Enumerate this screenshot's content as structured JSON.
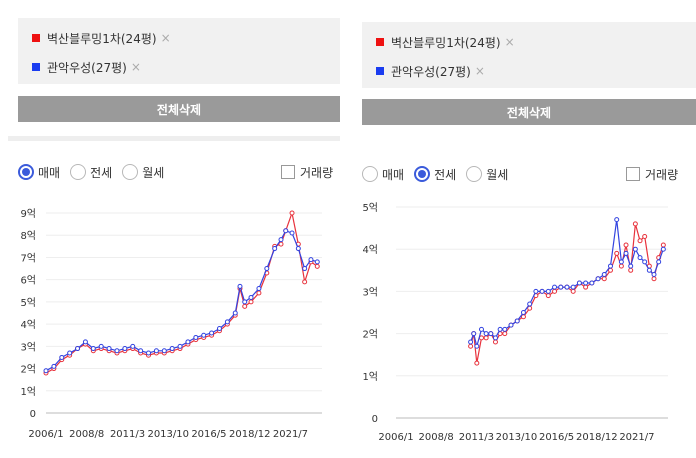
{
  "colors": {
    "series_a": "#e8323c",
    "series_b": "#3344e0",
    "accent": "#3b5bdb",
    "button_bg": "#9a9a9a"
  },
  "panels": [
    {
      "legend": [
        {
          "label": "벽산블루밍1차(24평)",
          "color": "#ee1111"
        },
        {
          "label": "관악우성(27평)",
          "color": "#1a3cf0"
        }
      ],
      "remove_icon": "×",
      "delete_all_label": "전체삭제",
      "radio_options": [
        {
          "label": "매매",
          "selected": true
        },
        {
          "label": "전세",
          "selected": false
        },
        {
          "label": "월세",
          "selected": false
        }
      ],
      "volume_label": "거래량",
      "volume_checked": false
    },
    {
      "legend": [
        {
          "label": "벽산블루밍1차(24평)",
          "color": "#ee1111"
        },
        {
          "label": "관악우성(27평)",
          "color": "#1a3cf0"
        }
      ],
      "remove_icon": "×",
      "delete_all_label": "전체삭제",
      "radio_options": [
        {
          "label": "매매",
          "selected": false
        },
        {
          "label": "전세",
          "selected": true
        },
        {
          "label": "월세",
          "selected": false
        }
      ],
      "volume_label": "거래량",
      "volume_checked": false
    }
  ],
  "chart_data": [
    {
      "type": "line",
      "title": "",
      "x_tick_labels": [
        "2006/1",
        "2008/8",
        "2011/3",
        "2013/10",
        "2016/5",
        "2018/12",
        "2021/7"
      ],
      "x_tick_values": [
        2006.0,
        2008.58,
        2011.17,
        2013.75,
        2016.33,
        2018.92,
        2021.5
      ],
      "x_range": [
        2006.0,
        2023.5
      ],
      "y_tick_labels": [
        "0",
        "1억",
        "2억",
        "3억",
        "4억",
        "5억",
        "6억",
        "7억",
        "8억",
        "9억"
      ],
      "y_tick_values": [
        0,
        1,
        2,
        3,
        4,
        5,
        6,
        7,
        8,
        9
      ],
      "y_range": [
        0,
        9
      ],
      "grid": "horizontal",
      "series": [
        {
          "name": "벽산블루밍1차(24평)",
          "color": "#e8323c",
          "x": [
            2006.0,
            2006.5,
            2007.0,
            2007.5,
            2008.0,
            2008.5,
            2009.0,
            2009.5,
            2010.0,
            2010.5,
            2011.0,
            2011.5,
            2012.0,
            2012.5,
            2013.0,
            2013.5,
            2014.0,
            2014.5,
            2015.0,
            2015.5,
            2016.0,
            2016.5,
            2017.0,
            2017.5,
            2018.0,
            2018.3,
            2018.6,
            2019.0,
            2019.5,
            2020.0,
            2020.5,
            2020.9,
            2021.2,
            2021.6,
            2022.0,
            2022.4,
            2022.8,
            2023.2
          ],
          "values": [
            1.8,
            2.0,
            2.4,
            2.6,
            2.9,
            3.1,
            2.8,
            2.9,
            2.8,
            2.7,
            2.8,
            2.9,
            2.7,
            2.6,
            2.7,
            2.7,
            2.8,
            2.9,
            3.1,
            3.3,
            3.4,
            3.5,
            3.7,
            4.0,
            4.4,
            5.6,
            4.8,
            5.0,
            5.4,
            6.3,
            7.5,
            7.6,
            8.2,
            9.0,
            7.6,
            5.9,
            6.8,
            6.6
          ]
        },
        {
          "name": "관악우성(27평)",
          "color": "#3344e0",
          "x": [
            2006.0,
            2006.5,
            2007.0,
            2007.5,
            2008.0,
            2008.5,
            2009.0,
            2009.5,
            2010.0,
            2010.5,
            2011.0,
            2011.5,
            2012.0,
            2012.5,
            2013.0,
            2013.5,
            2014.0,
            2014.5,
            2015.0,
            2015.5,
            2016.0,
            2016.5,
            2017.0,
            2017.5,
            2018.0,
            2018.3,
            2018.6,
            2019.0,
            2019.5,
            2020.0,
            2020.5,
            2020.9,
            2021.2,
            2021.6,
            2022.0,
            2022.4,
            2022.8,
            2023.2
          ],
          "values": [
            1.9,
            2.1,
            2.5,
            2.7,
            2.9,
            3.2,
            2.9,
            3.0,
            2.9,
            2.8,
            2.9,
            3.0,
            2.8,
            2.7,
            2.8,
            2.8,
            2.9,
            3.0,
            3.2,
            3.4,
            3.5,
            3.6,
            3.8,
            4.1,
            4.5,
            5.7,
            5.0,
            5.2,
            5.6,
            6.5,
            7.4,
            7.8,
            8.2,
            8.1,
            7.4,
            6.5,
            6.9,
            6.8
          ]
        }
      ]
    },
    {
      "type": "line",
      "title": "",
      "x_tick_labels": [
        "2006/1",
        "2008/8",
        "2011/3",
        "2013/10",
        "2016/5",
        "2018/12",
        "2021/7"
      ],
      "x_tick_values": [
        2006.0,
        2008.58,
        2011.17,
        2013.75,
        2016.33,
        2018.92,
        2021.5
      ],
      "x_range": [
        2006.0,
        2023.5
      ],
      "y_tick_labels": [
        "0",
        "1억",
        "2억",
        "3억",
        "4억",
        "5억"
      ],
      "y_tick_values": [
        0,
        1,
        2,
        3,
        4,
        5
      ],
      "y_range": [
        0,
        5
      ],
      "grid": "horizontal",
      "series": [
        {
          "name": "벽산블루밍1차(24평)",
          "color": "#e8323c",
          "x": [
            2010.8,
            2011.0,
            2011.2,
            2011.5,
            2011.8,
            2012.1,
            2012.4,
            2012.7,
            2013.0,
            2013.4,
            2013.8,
            2014.2,
            2014.6,
            2015.0,
            2015.4,
            2015.8,
            2016.2,
            2016.6,
            2017.0,
            2017.4,
            2017.8,
            2018.2,
            2018.6,
            2019.0,
            2019.4,
            2019.8,
            2020.2,
            2020.5,
            2020.8,
            2021.1,
            2021.4,
            2021.7,
            2022.0,
            2022.3,
            2022.6,
            2022.9,
            2023.2
          ],
          "values": [
            1.7,
            2.0,
            1.3,
            1.9,
            1.9,
            2.0,
            1.8,
            2.0,
            2.0,
            2.2,
            2.3,
            2.4,
            2.6,
            2.9,
            3.0,
            2.9,
            3.0,
            3.1,
            3.1,
            3.0,
            3.2,
            3.1,
            3.2,
            3.3,
            3.3,
            3.5,
            3.9,
            3.6,
            4.1,
            3.5,
            4.6,
            4.2,
            4.3,
            3.6,
            3.3,
            3.8,
            4.1
          ]
        },
        {
          "name": "관악우성(27평)",
          "color": "#3344e0",
          "x": [
            2010.8,
            2011.0,
            2011.2,
            2011.5,
            2011.8,
            2012.1,
            2012.4,
            2012.7,
            2013.0,
            2013.4,
            2013.8,
            2014.2,
            2014.6,
            2015.0,
            2015.4,
            2015.8,
            2016.2,
            2016.6,
            2017.0,
            2017.4,
            2017.8,
            2018.2,
            2018.6,
            2019.0,
            2019.4,
            2019.8,
            2020.2,
            2020.5,
            2020.8,
            2021.1,
            2021.4,
            2021.7,
            2022.0,
            2022.3,
            2022.6,
            2022.9,
            2023.2
          ],
          "values": [
            1.8,
            2.0,
            1.7,
            2.1,
            2.0,
            2.0,
            1.9,
            2.1,
            2.1,
            2.2,
            2.3,
            2.5,
            2.7,
            3.0,
            3.0,
            3.0,
            3.1,
            3.1,
            3.1,
            3.1,
            3.2,
            3.2,
            3.2,
            3.3,
            3.4,
            3.6,
            4.7,
            3.7,
            3.9,
            3.6,
            4.0,
            3.8,
            3.7,
            3.5,
            3.4,
            3.7,
            4.0
          ]
        }
      ]
    }
  ]
}
